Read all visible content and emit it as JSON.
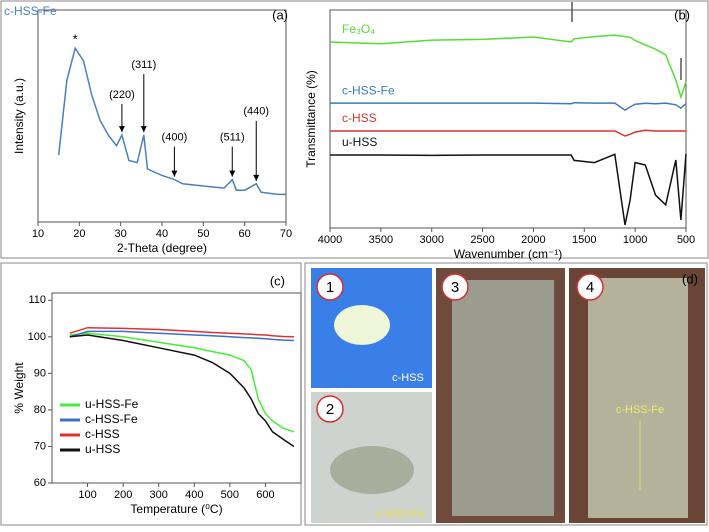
{
  "chart_data": [
    {
      "type": "line",
      "panel_label": "(a)",
      "xlabel": "2-Theta (degree)",
      "ylabel": "Intensity (a.u.)",
      "xlim": [
        10,
        70
      ],
      "xticks": [
        10,
        20,
        30,
        40,
        50,
        60,
        70
      ],
      "ylim": [
        0,
        100
      ],
      "x": [
        15,
        17,
        19,
        21,
        23,
        25,
        27,
        29,
        30.3,
        32,
        34,
        35.6,
        36.5,
        40,
        43,
        45,
        50,
        55,
        57,
        58,
        60,
        62.8,
        64,
        68,
        70
      ],
      "series": [
        {
          "name": "c-HSS-Fe",
          "color": "#4a7fc1",
          "values": [
            31.6,
            67,
            82,
            76,
            60,
            48,
            41,
            36,
            41,
            29,
            28,
            41,
            25,
            22,
            20,
            18,
            17,
            16,
            20,
            15,
            15,
            18,
            14,
            13,
            13
          ]
        }
      ],
      "annotations": [
        {
          "text": "*",
          "x": 19,
          "y": 82
        },
        {
          "text": "(220)",
          "x": 30.3,
          "y": 41
        },
        {
          "text": "(311)",
          "x": 35.6,
          "y": 41
        },
        {
          "text": "(400)",
          "x": 43,
          "y": 20
        },
        {
          "text": "(511)",
          "x": 57,
          "y": 20
        },
        {
          "text": "(440)",
          "x": 62.8,
          "y": 18
        }
      ]
    },
    {
      "type": "line",
      "panel_label": "(b)",
      "xlabel": "Wavenumber (cm⁻¹)",
      "ylabel": "Transmittance (%)",
      "xlim": [
        4000,
        500
      ],
      "xticks": [
        4000,
        3500,
        3000,
        2500,
        2000,
        1500,
        1000,
        500
      ],
      "ylim": [
        0,
        100
      ],
      "x": [
        4000,
        3500,
        3000,
        2500,
        2000,
        1630,
        1600,
        1400,
        1200,
        1100,
        1050,
        1000,
        900,
        800,
        700,
        600,
        550,
        500
      ],
      "series": [
        {
          "name": "Fe₃O₄",
          "color": "#55dd33",
          "values": [
            85.3,
            84.5,
            86.2,
            86.5,
            87.6,
            85.3,
            86.8,
            87.8,
            88.5,
            87.8,
            87.5,
            86,
            84,
            82,
            79.4,
            67.9,
            60.1,
            67
          ]
        },
        {
          "name": "c-HSS-Fe",
          "color": "#3c78c8",
          "values": [
            57.3,
            57.3,
            57.3,
            57.3,
            57.3,
            57,
            57.5,
            57.3,
            57.3,
            54.1,
            55.5,
            56.8,
            57.2,
            57,
            57.3,
            56.5,
            55,
            57
          ]
        },
        {
          "name": "c-HSS",
          "color": "#e03030",
          "values": [
            44.5,
            44.5,
            44.5,
            44.5,
            44.5,
            44.5,
            44.5,
            44.5,
            44.5,
            42.2,
            43,
            44,
            44.8,
            44.5,
            44.5,
            44.5,
            44.5,
            44.5
          ]
        },
        {
          "name": "u-HSS",
          "color": "#111111",
          "values": [
            33.5,
            33.5,
            33.3,
            33.5,
            33.5,
            33.5,
            31,
            30,
            33.8,
            1.4,
            12.8,
            30,
            28.9,
            15.1,
            10.6,
            31.2,
            3.7,
            34
          ]
        }
      ]
    },
    {
      "type": "line",
      "panel_label": "(c)",
      "xlabel": "Temperature (⁰C)",
      "ylabel": "% Weight",
      "xlim": [
        0,
        700
      ],
      "xticks": [
        100,
        200,
        300,
        400,
        500,
        600
      ],
      "ylim": [
        60,
        112
      ],
      "yticks": [
        60,
        70,
        80,
        90,
        100,
        110
      ],
      "x": [
        50,
        100,
        200,
        300,
        400,
        450,
        500,
        540,
        560,
        580,
        600,
        620,
        650,
        680
      ],
      "series": [
        {
          "name": "u-HSS-Fe",
          "color": "#44ee33",
          "values": [
            100.5,
            101,
            100,
            98.5,
            97,
            96,
            95,
            93.5,
            91,
            83,
            79,
            77,
            75,
            74
          ]
        },
        {
          "name": "c-HSS-Fe",
          "color": "#3c6fc8",
          "values": [
            100,
            101.5,
            101.5,
            101,
            100.5,
            100.3,
            100,
            99.8,
            99.7,
            99.6,
            99.5,
            99.3,
            99.1,
            99
          ]
        },
        {
          "name": "c-HSS",
          "color": "#e03030",
          "values": [
            101,
            102.5,
            102.3,
            102,
            101.5,
            101.2,
            101,
            100.8,
            100.7,
            100.6,
            100.5,
            100.3,
            100.1,
            100
          ]
        },
        {
          "name": "u-HSS",
          "color": "#111111",
          "values": [
            100,
            100.5,
            99,
            97,
            95,
            93,
            90,
            86,
            83,
            79,
            77,
            74,
            72,
            70
          ]
        }
      ]
    }
  ],
  "photo_panel": {
    "panel_label": "(d)",
    "photos": [
      {
        "number": "1",
        "caption": "c-HSS"
      },
      {
        "number": "2",
        "caption": "c-HSS-Fe"
      },
      {
        "number": "3"
      },
      {
        "number": "4",
        "caption": "c-HSS-Fe"
      }
    ]
  }
}
